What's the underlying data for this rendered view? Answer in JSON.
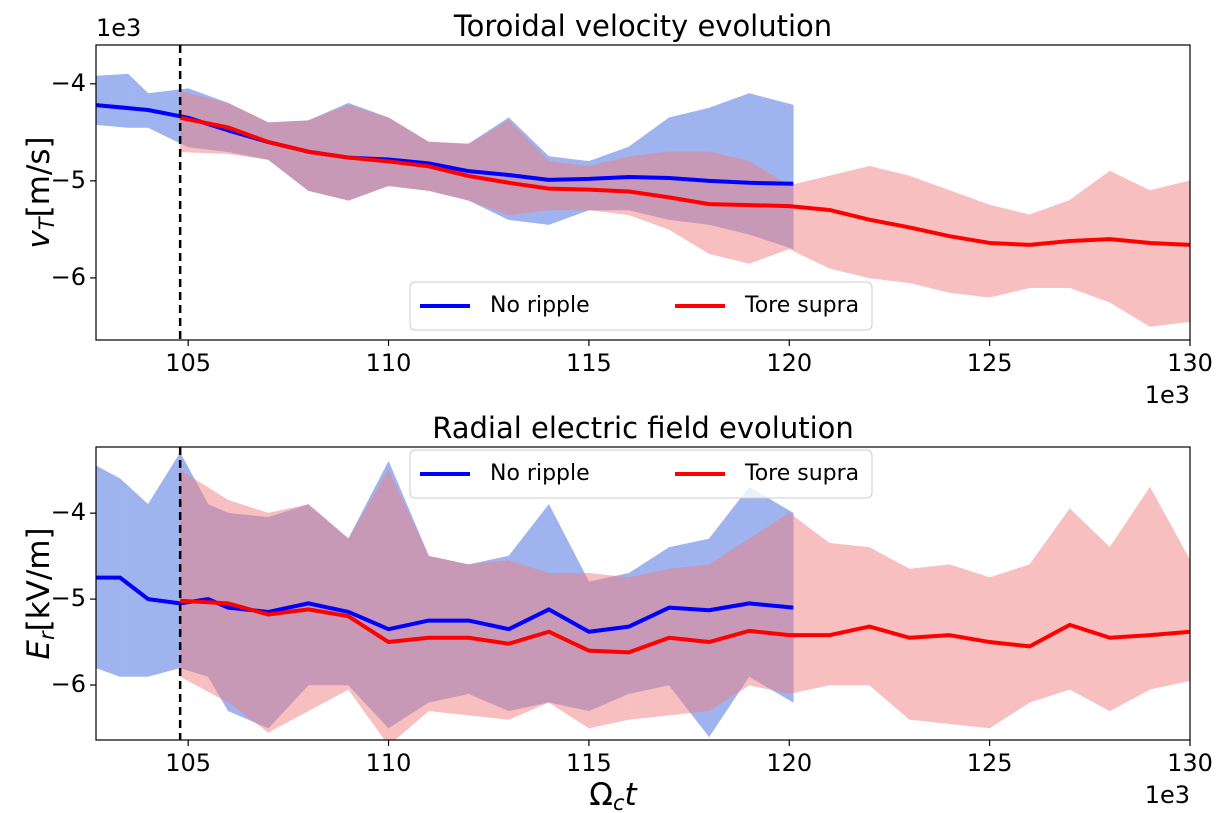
{
  "chart_data": [
    {
      "type": "line",
      "title": "Toroidal velocity evolution",
      "ylabel": {
        "main": "v",
        "sub": "T",
        "unit": "[m/s]"
      },
      "x_offset": "1e3",
      "y_offset": "1e3",
      "xlim": [
        102.7,
        130
      ],
      "xticks": [
        105,
        110,
        115,
        120,
        125,
        130
      ],
      "ylim": [
        -6.64,
        -3.6
      ],
      "yticks": [
        {
          "value": -6,
          "label": "−6"
        },
        {
          "value": -5,
          "label": "−5"
        },
        {
          "value": -4,
          "label": "−4"
        }
      ],
      "vline": 104.8,
      "legend": "lower center",
      "series": [
        {
          "name": "No ripple",
          "color": "#0000ff",
          "fill": "#4169e1",
          "x": [
            102.7,
            103.5,
            104,
            105,
            106,
            107,
            108,
            109,
            110,
            111,
            112,
            113,
            114,
            115,
            116,
            117,
            118,
            119,
            120.1
          ],
          "values": [
            -4.22,
            -4.25,
            -4.27,
            -4.35,
            -4.48,
            -4.6,
            -4.7,
            -4.76,
            -4.78,
            -4.82,
            -4.9,
            -4.94,
            -4.99,
            -4.98,
            -4.96,
            -4.97,
            -5.0,
            -5.02,
            -5.03
          ],
          "upper": [
            -3.92,
            -3.9,
            -4.1,
            -4.05,
            -4.2,
            -4.4,
            -4.38,
            -4.2,
            -4.35,
            -4.6,
            -4.62,
            -4.35,
            -4.75,
            -4.8,
            -4.65,
            -4.35,
            -4.25,
            -4.1,
            -4.22
          ],
          "lower": [
            -4.42,
            -4.45,
            -4.45,
            -4.65,
            -4.7,
            -4.78,
            -5.1,
            -5.2,
            -5.05,
            -5.1,
            -5.2,
            -5.4,
            -5.45,
            -5.3,
            -5.3,
            -5.4,
            -5.45,
            -5.55,
            -5.7
          ]
        },
        {
          "name": "Tore supra",
          "color": "#ff0000",
          "fill": "#f08080",
          "x": [
            104.8,
            106,
            107,
            108,
            109,
            110,
            111,
            112,
            113,
            114,
            115,
            116,
            117,
            118,
            119,
            120,
            121,
            122,
            123,
            124,
            125,
            126,
            127,
            128,
            129,
            130
          ],
          "values": [
            -4.35,
            -4.45,
            -4.6,
            -4.7,
            -4.76,
            -4.8,
            -4.85,
            -4.95,
            -5.02,
            -5.08,
            -5.09,
            -5.11,
            -5.17,
            -5.24,
            -5.25,
            -5.26,
            -5.3,
            -5.4,
            -5.48,
            -5.57,
            -5.64,
            -5.66,
            -5.62,
            -5.6,
            -5.64,
            -5.66
          ],
          "upper": [
            -4.08,
            -4.2,
            -4.4,
            -4.38,
            -4.22,
            -4.35,
            -4.6,
            -4.62,
            -4.38,
            -4.8,
            -4.85,
            -4.75,
            -4.7,
            -4.7,
            -4.8,
            -5.05,
            -4.95,
            -4.85,
            -4.95,
            -5.1,
            -5.25,
            -5.35,
            -5.2,
            -4.9,
            -5.1,
            -5.0
          ],
          "lower": [
            -4.7,
            -4.72,
            -4.78,
            -5.1,
            -5.2,
            -5.05,
            -5.1,
            -5.2,
            -5.35,
            -5.3,
            -5.3,
            -5.35,
            -5.5,
            -5.75,
            -5.85,
            -5.7,
            -5.9,
            -6.0,
            -6.05,
            -6.15,
            -6.2,
            -6.1,
            -6.1,
            -6.25,
            -6.5,
            -6.45
          ]
        }
      ]
    },
    {
      "type": "line",
      "title": "Radial electric field evolution",
      "ylabel": {
        "main": "E",
        "sub": "r",
        "unit": "[kV/m]"
      },
      "xlabel": {
        "main": "Ω",
        "sub": "c",
        "rest": "t"
      },
      "x_offset": "1e3",
      "xlim": [
        102.7,
        130
      ],
      "xticks": [
        105,
        110,
        115,
        120,
        125,
        130
      ],
      "ylim": [
        -6.64,
        -3.23
      ],
      "yticks": [
        {
          "value": -6,
          "label": "−6"
        },
        {
          "value": -5,
          "label": "−5"
        },
        {
          "value": -4,
          "label": "−4"
        }
      ],
      "vline": 104.8,
      "legend": "upper center",
      "series": [
        {
          "name": "No ripple",
          "color": "#0000ff",
          "fill": "#4169e1",
          "x": [
            102.7,
            103.3,
            104,
            104.8,
            105.5,
            106,
            107,
            108,
            109,
            110,
            111,
            112,
            113,
            114,
            115,
            116,
            117,
            118,
            119,
            120.1
          ],
          "values": [
            -4.75,
            -4.75,
            -5.0,
            -5.05,
            -5.0,
            -5.1,
            -5.15,
            -5.05,
            -5.15,
            -5.35,
            -5.25,
            -5.25,
            -5.35,
            -5.12,
            -5.38,
            -5.32,
            -5.1,
            -5.13,
            -5.05,
            -5.1
          ],
          "upper": [
            -3.45,
            -3.6,
            -3.9,
            -3.3,
            -3.9,
            -4.0,
            -4.05,
            -3.9,
            -4.3,
            -3.4,
            -4.5,
            -4.6,
            -4.5,
            -3.9,
            -4.8,
            -4.7,
            -4.4,
            -4.3,
            -3.7,
            -4.0
          ],
          "lower": [
            -5.8,
            -5.9,
            -5.9,
            -5.8,
            -5.9,
            -6.3,
            -6.5,
            -6.0,
            -6.0,
            -6.5,
            -6.2,
            -6.1,
            -6.3,
            -6.2,
            -6.3,
            -6.1,
            -6.0,
            -6.6,
            -5.9,
            -6.2
          ]
        },
        {
          "name": "Tore supra",
          "color": "#ff0000",
          "fill": "#f08080",
          "x": [
            104.8,
            106,
            107,
            108,
            109,
            110,
            111,
            112,
            113,
            114,
            115,
            116,
            117,
            118,
            119,
            120,
            121,
            122,
            123,
            124,
            125,
            126,
            127,
            128,
            129,
            130
          ],
          "values": [
            -5.02,
            -5.05,
            -5.18,
            -5.12,
            -5.2,
            -5.5,
            -5.45,
            -5.45,
            -5.52,
            -5.38,
            -5.6,
            -5.62,
            -5.45,
            -5.5,
            -5.37,
            -5.42,
            -5.42,
            -5.32,
            -5.45,
            -5.42,
            -5.5,
            -5.55,
            -5.3,
            -5.45,
            -5.42,
            -5.38
          ],
          "upper": [
            -3.5,
            -3.85,
            -4.0,
            -3.9,
            -4.3,
            -3.5,
            -4.5,
            -4.6,
            -4.55,
            -4.7,
            -4.7,
            -4.75,
            -4.65,
            -4.6,
            -4.3,
            -4.0,
            -4.35,
            -4.4,
            -4.65,
            -4.6,
            -4.75,
            -4.6,
            -3.95,
            -4.4,
            -3.7,
            -4.55
          ],
          "lower": [
            -5.9,
            -6.2,
            -6.55,
            -6.3,
            -6.05,
            -6.7,
            -6.3,
            -6.35,
            -6.4,
            -6.2,
            -6.5,
            -6.4,
            -6.35,
            -6.3,
            -6.0,
            -6.1,
            -6.0,
            -6.0,
            -6.4,
            -6.45,
            -6.5,
            -6.2,
            -6.05,
            -6.3,
            -6.05,
            -5.95
          ]
        }
      ]
    }
  ]
}
